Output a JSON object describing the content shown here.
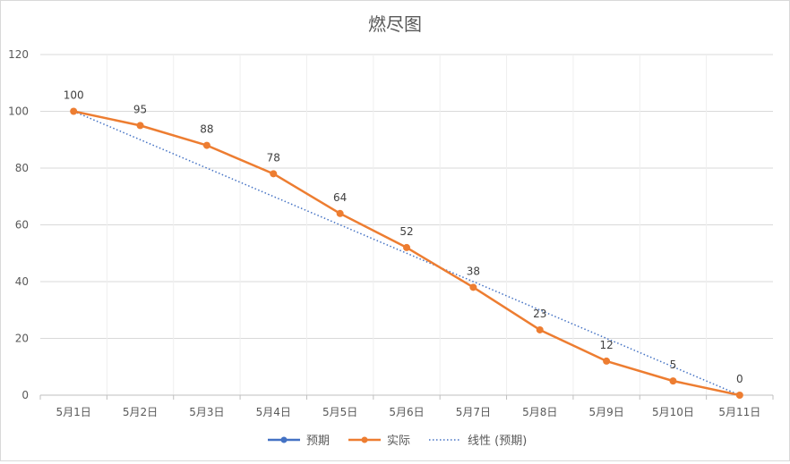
{
  "chart_data": {
    "type": "line",
    "title": "燃尽图",
    "xlabel": "",
    "ylabel": "",
    "categories": [
      "5月1日",
      "5月2日",
      "5月3日",
      "5月4日",
      "5月5日",
      "5月6日",
      "5月7日",
      "5月8日",
      "5月9日",
      "5月10日",
      "5月11日"
    ],
    "ylim": [
      0,
      120
    ],
    "yticks": [
      0,
      20,
      40,
      60,
      80,
      100,
      120
    ],
    "grid": true,
    "legend_position": "bottom",
    "series": [
      {
        "name": "预期",
        "values": [
          100,
          90,
          80,
          70,
          60,
          50,
          40,
          30,
          20,
          10,
          0
        ],
        "color": "#4472C4",
        "show_line": false
      },
      {
        "name": "实际",
        "values": [
          100,
          95,
          88,
          78,
          64,
          52,
          38,
          23,
          12,
          5,
          0
        ],
        "color": "#ED7D31",
        "show_line": true,
        "data_labels": true
      }
    ],
    "trendline": {
      "name": "线性 (预期)",
      "color": "#4472C4",
      "style": "dotted",
      "from": 100,
      "to": 0
    }
  }
}
